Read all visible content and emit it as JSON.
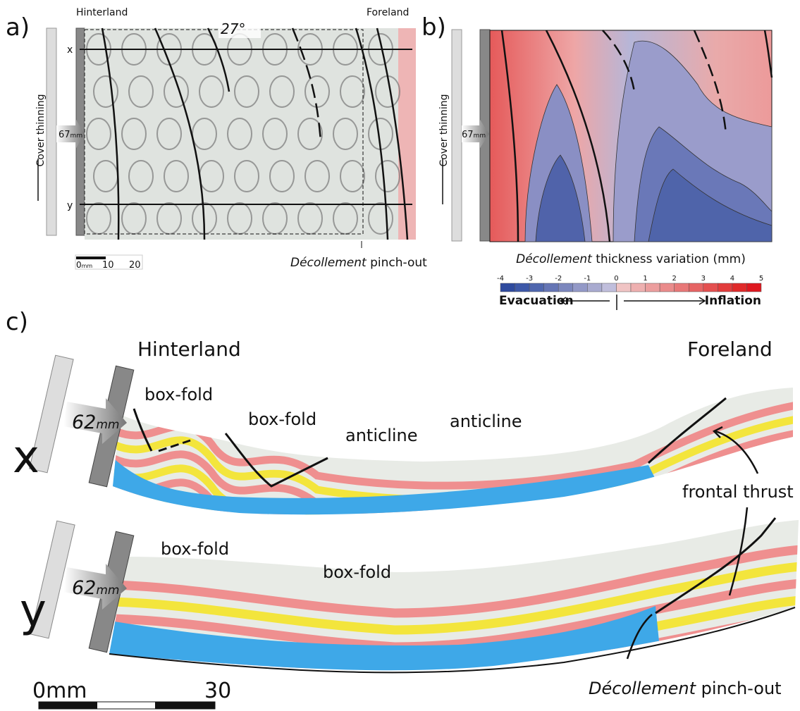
{
  "panel_a": {
    "label": "a)",
    "hinterland": "Hinterland",
    "foreland": "Foreland",
    "rotation": "27°",
    "side_label": "Cover thinning",
    "shortening": "67",
    "shortening_unit": "mm",
    "section_x": "x",
    "section_y": "y",
    "scale": {
      "start": "0",
      "unit": "mm",
      "mid": "10",
      "end": "20"
    },
    "pinch_out": {
      "term": "Décollement",
      "text": "pinch-out"
    }
  },
  "panel_b": {
    "label": "b)",
    "side_label": "Cover thinning",
    "shortening": "67",
    "shortening_unit": "mm",
    "colorbar": {
      "title_term": "Décollement",
      "title_text": "thickness variation (mm)",
      "ticks": [
        -4,
        -3,
        -2,
        -1,
        0,
        1,
        2,
        3,
        4,
        5
      ],
      "colors": [
        "#2e4a9e",
        "#3d58a8",
        "#4f66ae",
        "#6575b5",
        "#7c87bd",
        "#9399c7",
        "#a9abd0",
        "#c0bedc",
        "#f0c4c4",
        "#eeb0b0",
        "#ec9e9e",
        "#ea8b8b",
        "#e87878",
        "#e66464",
        "#e45050",
        "#e23c3c",
        "#e02a2a",
        "#de1820"
      ],
      "left": "Evacuation",
      "right": "Inflation"
    }
  },
  "panel_c": {
    "label": "c)",
    "hinterland": "Hinterland",
    "foreland": "Foreland",
    "section_x": {
      "label": "x",
      "shortening": "62",
      "shortening_unit": "mm",
      "annotations": [
        "box-fold",
        "box-fold",
        "anticline",
        "anticline"
      ]
    },
    "section_y": {
      "label": "y",
      "shortening": "62",
      "shortening_unit": "mm",
      "annotations": [
        "box-fold",
        "box-fold"
      ]
    },
    "frontal_thrust": "frontal thrust",
    "pinch_out": {
      "term": "Décollement",
      "text": "pinch-out"
    },
    "scale": {
      "start": "0mm",
      "end": "30"
    }
  }
}
